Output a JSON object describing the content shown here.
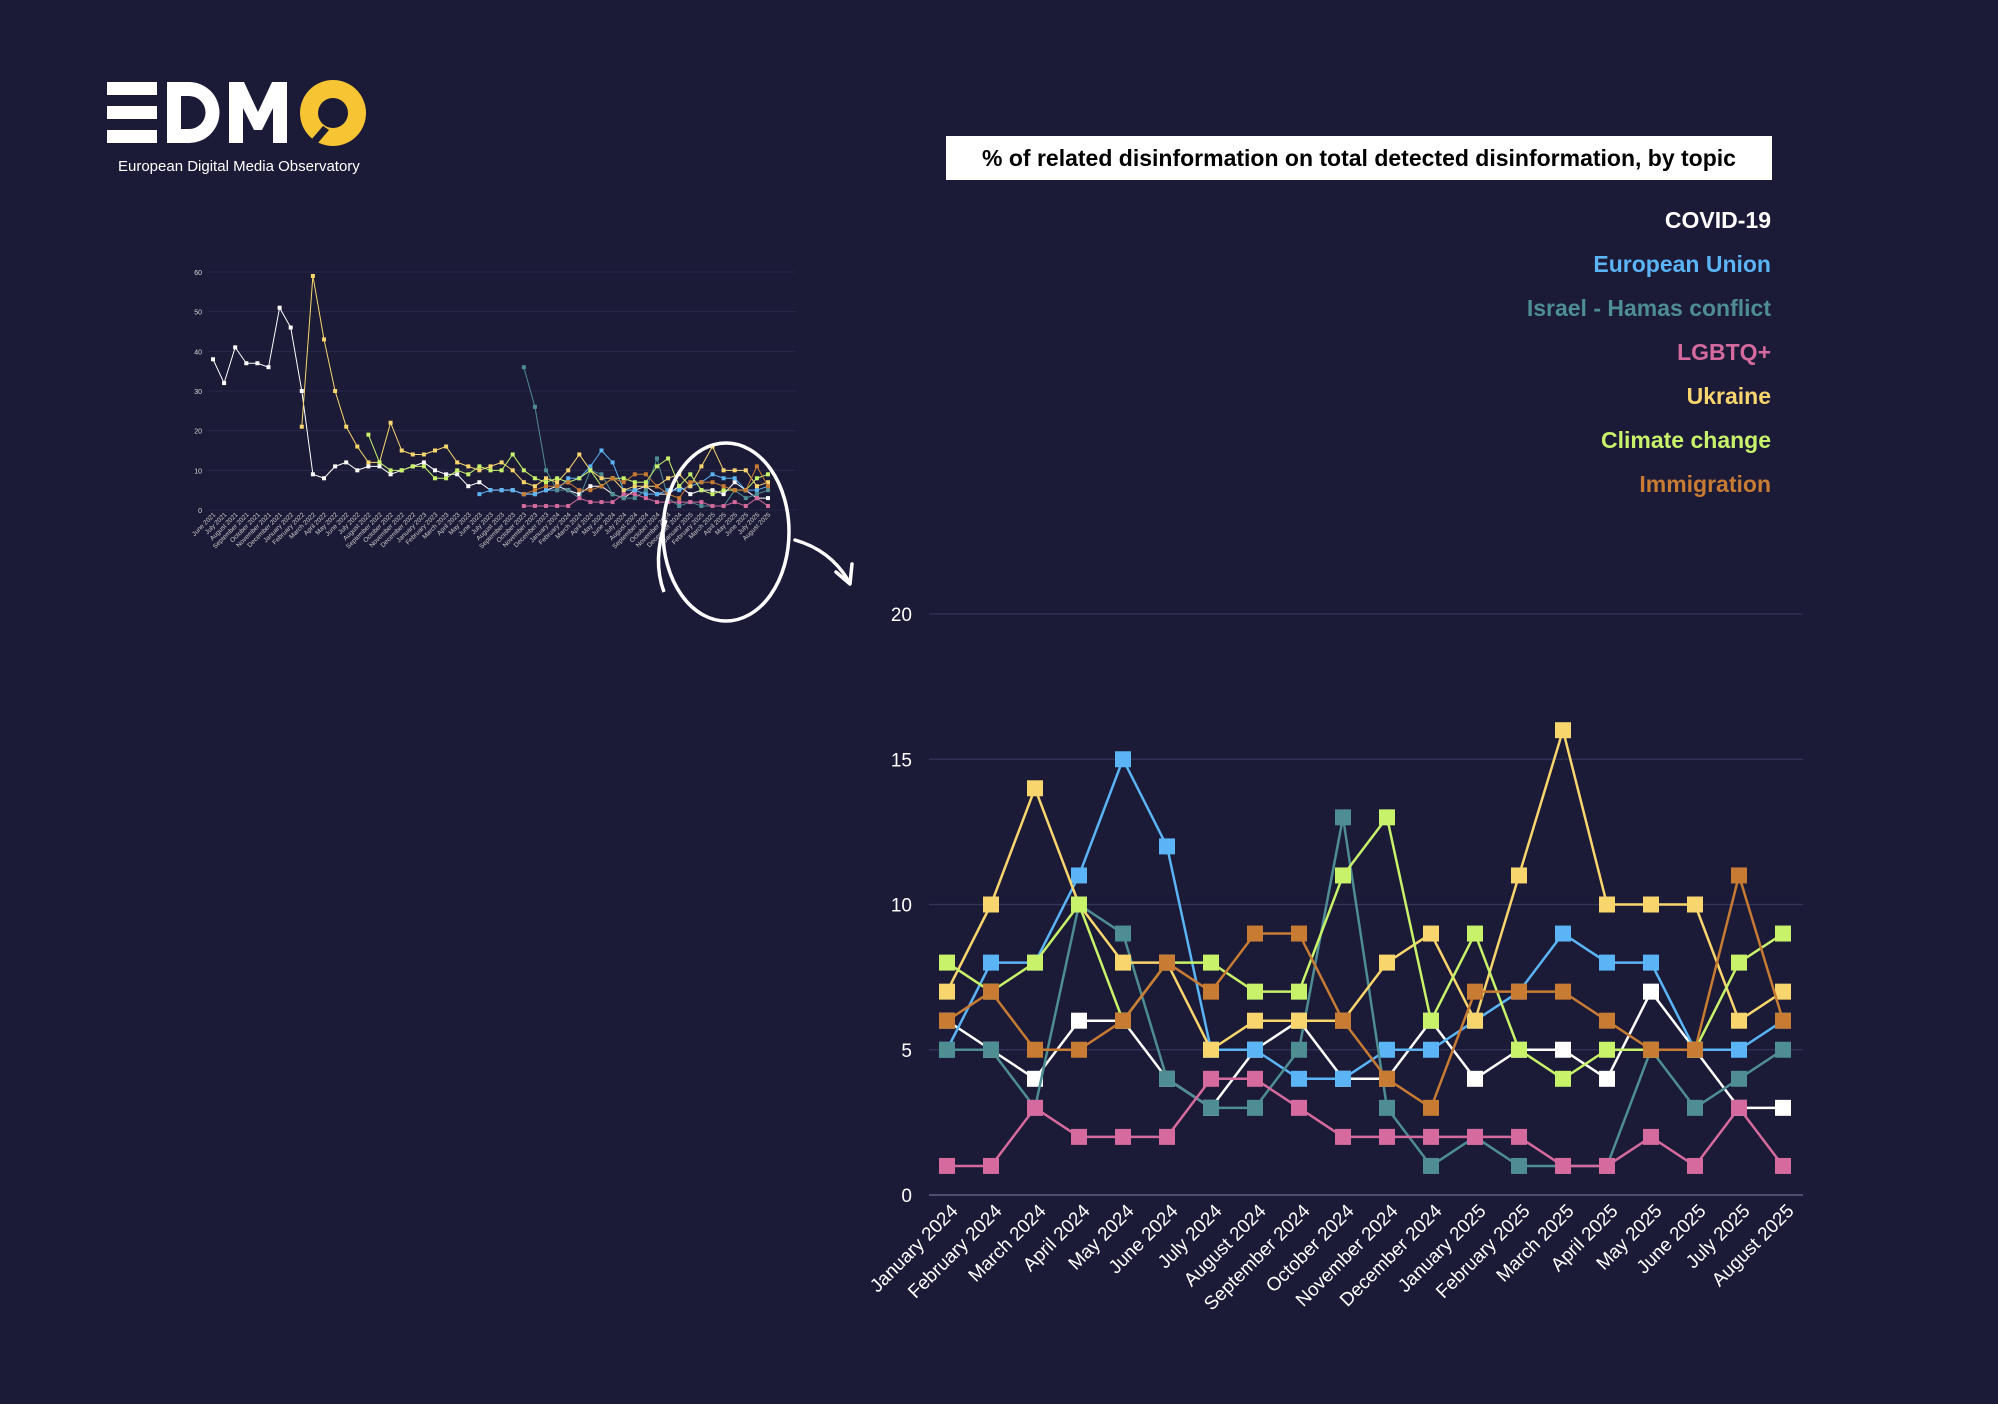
{
  "brand": {
    "name": "EDMO",
    "subtitle": "European Digital Media Observatory",
    "accent_color": "#f7c434"
  },
  "chart_data": {
    "type": "line",
    "title": "% of related disinformation on total detected disinformation, by topic",
    "xlabel": "",
    "ylabel": "",
    "ylim": [
      0,
      20
    ],
    "yticks": [
      0,
      5,
      10,
      15,
      20
    ],
    "grid": true,
    "legend_position": "top-right",
    "categories": [
      "January 2024",
      "February 2024",
      "March 2024",
      "April 2024",
      "May 2024",
      "June 2024",
      "July 2024",
      "August 2024",
      "September 2024",
      "October 2024",
      "November 2024",
      "December 2024",
      "January 2025",
      "February 2025",
      "March 2025",
      "April 2025",
      "May 2025",
      "June 2025",
      "July 2025",
      "August 2025"
    ],
    "series": [
      {
        "name": "COVID-19",
        "color": "#ffffff",
        "values": [
          6,
          5,
          4,
          6,
          6,
          4,
          3,
          5,
          6,
          4,
          4,
          6,
          4,
          5,
          5,
          4,
          7,
          5,
          3,
          3
        ]
      },
      {
        "name": "European Union",
        "color": "#5bb4f5",
        "values": [
          5,
          8,
          8,
          11,
          15,
          12,
          5,
          5,
          4,
          4,
          5,
          5,
          6,
          7,
          9,
          8,
          8,
          5,
          5,
          6
        ]
      },
      {
        "name": "Israel - Hamas conflict",
        "color": "#4e8e93",
        "values": [
          5,
          5,
          3,
          10,
          9,
          4,
          3,
          3,
          5,
          13,
          3,
          1,
          2,
          1,
          1,
          1,
          5,
          3,
          4,
          5
        ]
      },
      {
        "name": "LGBTQ+",
        "color": "#d46a9d",
        "values": [
          1,
          1,
          3,
          2,
          2,
          2,
          4,
          4,
          3,
          2,
          2,
          2,
          2,
          2,
          1,
          1,
          2,
          1,
          3,
          1
        ]
      },
      {
        "name": "Ukraine",
        "color": "#f9d66d",
        "values": [
          7,
          10,
          14,
          10,
          8,
          8,
          5,
          6,
          6,
          6,
          8,
          9,
          6,
          11,
          16,
          10,
          10,
          10,
          6,
          7
        ]
      },
      {
        "name": "Climate change",
        "color": "#c7f26a",
        "values": [
          8,
          7,
          8,
          10,
          6,
          8,
          8,
          7,
          7,
          11,
          13,
          6,
          9,
          5,
          4,
          5,
          5,
          5,
          8,
          9
        ]
      },
      {
        "name": "Immigration",
        "color": "#c77b33",
        "values": [
          6,
          7,
          5,
          5,
          6,
          8,
          7,
          9,
          9,
          6,
          4,
          3,
          7,
          7,
          7,
          6,
          5,
          5,
          11,
          6
        ]
      }
    ]
  },
  "overview_chart": {
    "type": "line",
    "ylim": [
      0,
      60
    ],
    "yticks": [
      0,
      10,
      20,
      30,
      40,
      50,
      60
    ],
    "categories": [
      "June 2021",
      "July 2021",
      "August 2021",
      "September 2021",
      "October 2021",
      "November 2021",
      "December 2021",
      "January 2022",
      "February 2022",
      "March 2022",
      "April 2022",
      "May 2022",
      "June 2022",
      "July 2022",
      "August 2022",
      "September 2022",
      "October 2022",
      "November 2022",
      "December 2022",
      "January 2023",
      "February 2023",
      "March 2023",
      "April 2023",
      "May 2023",
      "June 2023",
      "July 2023",
      "August 2023",
      "September 2023",
      "October 2023",
      "November 2023",
      "December 2023",
      "January 2024",
      "February 2024",
      "March 2024",
      "April 2024",
      "May 2024",
      "June 2024",
      "July 2024",
      "August 2024",
      "September 2024",
      "October 2024",
      "November 2024",
      "December 2024",
      "January 2025",
      "February 2025",
      "March 2025",
      "April 2025",
      "May 2025",
      "June 2025",
      "July 2025",
      "August 2025"
    ],
    "series": [
      {
        "name": "COVID-19",
        "color": "#ffffff",
        "values": [
          38,
          32,
          41,
          37,
          37,
          36,
          51,
          46,
          30,
          9,
          8,
          11,
          12,
          10,
          11,
          11,
          9,
          10,
          11,
          12,
          10,
          9,
          9,
          6,
          7,
          5,
          5,
          5,
          4,
          4,
          5,
          6,
          5,
          4,
          6,
          6,
          4,
          3,
          5,
          6,
          4,
          4,
          6,
          4,
          5,
          5,
          4,
          7,
          5,
          3,
          3
        ]
      },
      {
        "name": "European Union",
        "color": "#5bb4f5",
        "values": [
          null,
          null,
          null,
          null,
          null,
          null,
          null,
          null,
          null,
          null,
          null,
          null,
          null,
          null,
          null,
          null,
          null,
          null,
          null,
          null,
          null,
          null,
          null,
          null,
          4,
          5,
          5,
          5,
          4,
          4,
          5,
          5,
          8,
          8,
          11,
          15,
          12,
          5,
          5,
          4,
          4,
          5,
          5,
          6,
          7,
          9,
          8,
          8,
          5,
          5,
          6
        ]
      },
      {
        "name": "Israel - Hamas conflict",
        "color": "#4e8e93",
        "values": [
          null,
          null,
          null,
          null,
          null,
          null,
          null,
          null,
          null,
          null,
          null,
          null,
          null,
          null,
          null,
          null,
          null,
          null,
          null,
          null,
          null,
          null,
          null,
          null,
          null,
          null,
          null,
          null,
          36,
          26,
          10,
          5,
          5,
          3,
          10,
          9,
          4,
          3,
          3,
          5,
          13,
          3,
          1,
          2,
          1,
          1,
          1,
          5,
          3,
          4,
          5
        ]
      },
      {
        "name": "LGBTQ+",
        "color": "#d46a9d",
        "values": [
          null,
          null,
          null,
          null,
          null,
          null,
          null,
          null,
          null,
          null,
          null,
          null,
          null,
          null,
          null,
          null,
          null,
          null,
          null,
          null,
          null,
          null,
          null,
          null,
          null,
          null,
          null,
          null,
          1,
          1,
          1,
          1,
          1,
          3,
          2,
          2,
          2,
          4,
          4,
          3,
          2,
          2,
          2,
          2,
          2,
          1,
          1,
          2,
          1,
          3,
          1
        ]
      },
      {
        "name": "Ukraine",
        "color": "#f9d66d",
        "values": [
          null,
          null,
          null,
          null,
          null,
          null,
          null,
          null,
          21,
          59,
          43,
          30,
          21,
          16,
          12,
          12,
          22,
          15,
          14,
          14,
          15,
          16,
          12,
          11,
          10,
          11,
          12,
          10,
          7,
          6,
          8,
          7,
          10,
          14,
          10,
          8,
          8,
          5,
          6,
          6,
          6,
          8,
          9,
          6,
          11,
          16,
          10,
          10,
          10,
          6,
          7
        ]
      },
      {
        "name": "Climate change",
        "color": "#c7f26a",
        "values": [
          null,
          null,
          null,
          null,
          null,
          null,
          null,
          null,
          null,
          null,
          null,
          null,
          null,
          null,
          19,
          12,
          10,
          10,
          11,
          11,
          8,
          8,
          10,
          9,
          11,
          10,
          10,
          14,
          10,
          8,
          7,
          8,
          7,
          8,
          10,
          6,
          8,
          8,
          7,
          7,
          11,
          13,
          6,
          9,
          5,
          4,
          5,
          5,
          5,
          8,
          9
        ]
      },
      {
        "name": "Immigration",
        "color": "#c77b33",
        "values": [
          null,
          null,
          null,
          null,
          null,
          null,
          null,
          null,
          null,
          null,
          null,
          null,
          null,
          null,
          null,
          null,
          null,
          null,
          null,
          null,
          null,
          null,
          null,
          null,
          null,
          null,
          null,
          null,
          4,
          5,
          6,
          6,
          7,
          5,
          5,
          6,
          8,
          7,
          9,
          9,
          6,
          4,
          3,
          7,
          7,
          7,
          6,
          5,
          5,
          11,
          6
        ]
      }
    ]
  }
}
